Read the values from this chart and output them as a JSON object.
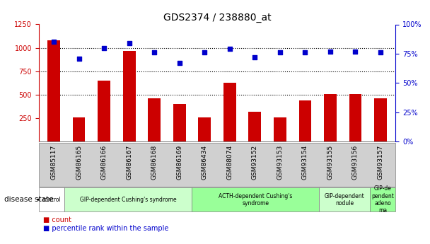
{
  "title": "GDS2374 / 238880_at",
  "samples": [
    "GSM85117",
    "GSM86165",
    "GSM86166",
    "GSM86167",
    "GSM86168",
    "GSM86169",
    "GSM86434",
    "GSM88074",
    "GSM93152",
    "GSM93153",
    "GSM93154",
    "GSM93155",
    "GSM93156",
    "GSM93157"
  ],
  "counts": [
    1080,
    255,
    650,
    970,
    460,
    400,
    255,
    630,
    320,
    255,
    440,
    510,
    510,
    460
  ],
  "percentiles": [
    85,
    71,
    80,
    84,
    76,
    67,
    76,
    79,
    72,
    76,
    76,
    77,
    77,
    76
  ],
  "bar_color": "#cc0000",
  "dot_color": "#0000cc",
  "ylim_left": [
    0,
    1250
  ],
  "ylim_right": [
    0,
    100
  ],
  "yticks_left": [
    250,
    500,
    750,
    1000,
    1250
  ],
  "yticks_right": [
    0,
    25,
    50,
    75,
    100
  ],
  "disease_groups": [
    {
      "label": "control",
      "start": 0,
      "end": 1,
      "color": "#ffffff"
    },
    {
      "label": "GIP-dependent Cushing's syndrome",
      "start": 1,
      "end": 6,
      "color": "#ccffcc"
    },
    {
      "label": "ACTH-dependent Cushing's\nsyndrome",
      "start": 6,
      "end": 11,
      "color": "#99ff99"
    },
    {
      "label": "GIP-dependent\nnodule",
      "start": 11,
      "end": 13,
      "color": "#ccffcc"
    },
    {
      "label": "GIP-de\npendent\nadeno\nma",
      "start": 13,
      "end": 14,
      "color": "#99ff99"
    }
  ],
  "grid_color": "#000000",
  "background_color": "#ffffff",
  "xticklabel_color": "#000000",
  "left_axis_color": "#cc0000",
  "right_axis_color": "#0000cc"
}
